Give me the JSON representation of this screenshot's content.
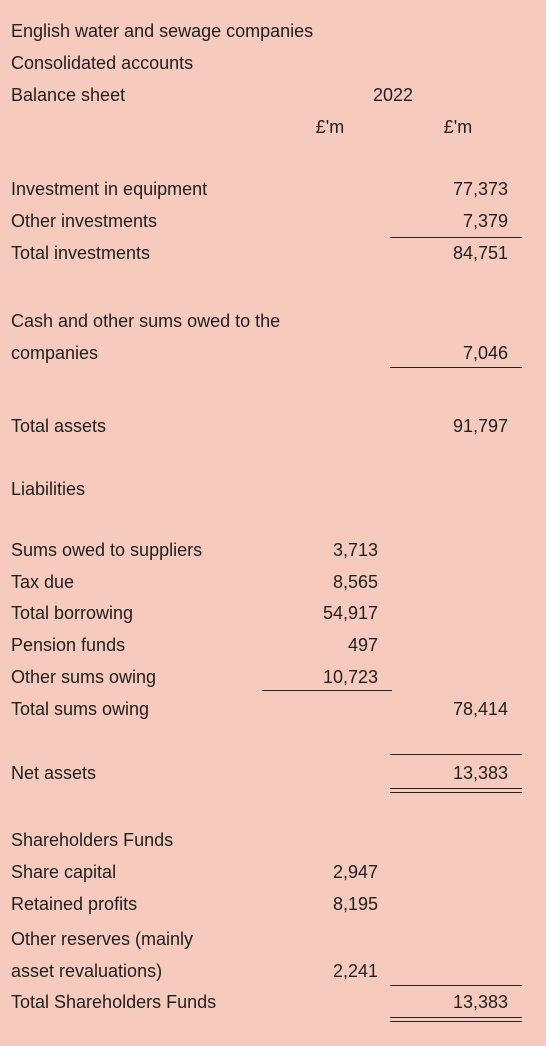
{
  "header": {
    "lines": [
      "English water and sewage companies",
      "Consolidated accounts",
      "Balance sheet"
    ],
    "year": "2022",
    "units": [
      "£'m",
      "£'m"
    ]
  },
  "rows": [
    {
      "label": "Investment in equipment",
      "total": "77,373"
    },
    {
      "label": "Other investments",
      "total": "7,379"
    },
    {
      "label": "Total investments",
      "total": "84,751"
    },
    {
      "label": "Cash and other sums owed to the"
    },
    {
      "label": "companies",
      "total": "7,046"
    },
    {
      "label": "Total assets",
      "total": "91,797"
    },
    {
      "label": "Liabilities"
    },
    {
      "label": "Sums owed to suppliers",
      "item": "3,713"
    },
    {
      "label": "Tax due",
      "item": "8,565"
    },
    {
      "label": "Total borrowing",
      "item": "54,917"
    },
    {
      "label": "Pension funds",
      "item": "497"
    },
    {
      "label": "Other sums owing",
      "item": "10,723"
    },
    {
      "label": "Total sums owing",
      "total": "78,414"
    },
    {
      "label": "Net assets",
      "total": "13,383"
    },
    {
      "label": "Shareholders Funds"
    },
    {
      "label": "Share capital",
      "item": "2,947"
    },
    {
      "label": "Retained profits",
      "item": "8,195"
    },
    {
      "label": "Other reserves (mainly"
    },
    {
      "label": "asset revaluations)",
      "item": "2,241"
    },
    {
      "label": "Total Shareholders Funds",
      "total": "13,383"
    }
  ]
}
